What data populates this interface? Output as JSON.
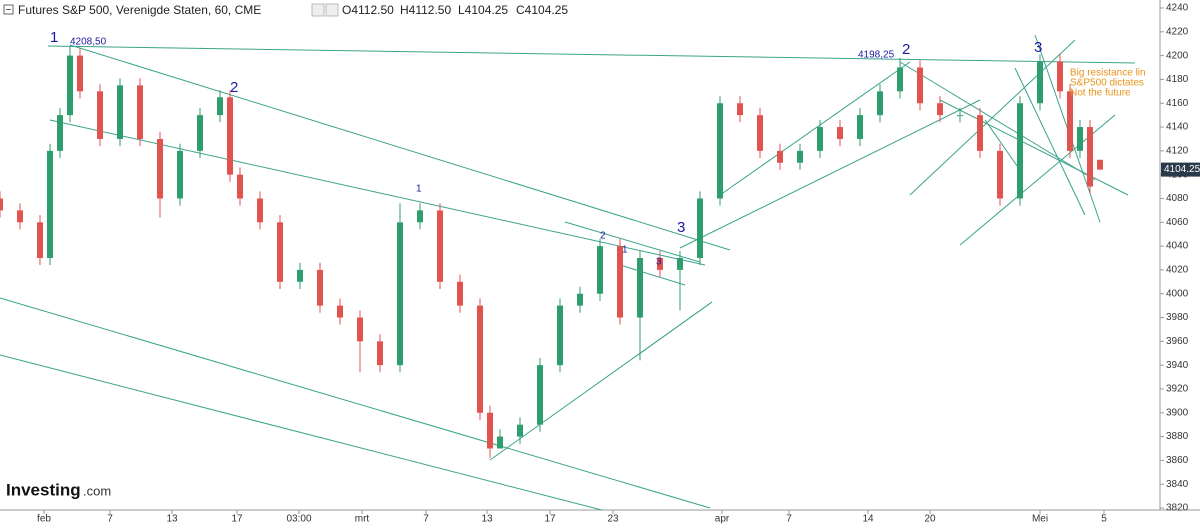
{
  "header": {
    "title": "Futures S&P 500, Verenigde Staten, 60, CME",
    "open": "O4112.50",
    "high": "H4112.50",
    "low": "L4104.25",
    "close": "C4104.25"
  },
  "logo": {
    "brand": "Investing",
    "suffix": ".com"
  },
  "chart_data": {
    "type": "candlestick",
    "up_color": "#2e9e6e",
    "down_color": "#e0534f",
    "xlim": [
      0,
      116
    ],
    "ylim": [
      3820,
      4240
    ],
    "yticks": [
      3820,
      3840,
      3860,
      3880,
      3900,
      3920,
      3940,
      3960,
      3980,
      4000,
      4020,
      4040,
      4060,
      4080,
      4100,
      4120,
      4140,
      4160,
      4180,
      4200,
      4220,
      4240
    ],
    "xticks": [
      {
        "value": 4.4,
        "label": "feb"
      },
      {
        "value": 11,
        "label": "7"
      },
      {
        "value": 17.2,
        "label": "13"
      },
      {
        "value": 23.7,
        "label": "17"
      },
      {
        "value": 29.9,
        "label": "03:00"
      },
      {
        "value": 36.2,
        "label": "mrt"
      },
      {
        "value": 42.6,
        "label": "7"
      },
      {
        "value": 48.7,
        "label": "13"
      },
      {
        "value": 55,
        "label": "17"
      },
      {
        "value": 61.3,
        "label": "23"
      },
      {
        "value": 72.2,
        "label": "apr"
      },
      {
        "value": 78.9,
        "label": "7"
      },
      {
        "value": 86.8,
        "label": "14"
      },
      {
        "value": 93,
        "label": "20"
      },
      {
        "value": 104,
        "label": "Mei"
      },
      {
        "value": 110.4,
        "label": "5"
      }
    ],
    "last_price": 4104.25,
    "x": [
      0,
      2,
      4,
      5,
      6,
      7,
      8,
      10,
      12,
      14,
      16,
      18,
      20,
      22,
      23,
      24,
      26,
      28,
      30,
      32,
      34,
      36,
      38,
      40,
      42,
      44,
      46,
      48,
      49,
      50,
      52,
      54,
      56,
      58,
      60,
      62,
      64,
      66,
      68,
      70,
      72,
      74,
      76,
      78,
      80,
      82,
      84,
      86,
      88,
      90,
      92,
      94,
      96,
      98,
      100,
      102,
      104,
      106,
      107,
      108,
      109,
      110
    ],
    "open": [
      4080,
      4070,
      4060,
      4030,
      4120,
      4150,
      4200,
      4170,
      4130,
      4175,
      4130,
      4080,
      4120,
      4150,
      4165,
      4100,
      4080,
      4060,
      4010,
      4020,
      3990,
      3980,
      3960,
      3940,
      4060,
      4070,
      4010,
      3990,
      3900,
      3870,
      3880,
      3890,
      3940,
      3990,
      4000,
      4040,
      3980,
      4030,
      4020,
      4030,
      4080,
      4160,
      4150,
      4120,
      4110,
      4120,
      4140,
      4130,
      4150,
      4170,
      4190,
      4160,
      4150,
      4150,
      4120,
      4080,
      4160,
      4195,
      4170,
      4120,
      4140,
      4112.5
    ],
    "high": [
      4086,
      4076,
      4066,
      4126,
      4156,
      4208.5,
      4206,
      4176,
      4181,
      4181,
      4136,
      4126,
      4156,
      4171,
      4171,
      4106,
      4086,
      4066,
      4026,
      4026,
      3996,
      3986,
      3966,
      4076,
      4076,
      4076,
      4016,
      3996,
      3906,
      3886,
      3896,
      3946,
      3996,
      4006,
      4046,
      4046,
      4036,
      4036,
      4036,
      4086,
      4166,
      4166,
      4156,
      4126,
      4126,
      4146,
      4146,
      4156,
      4176,
      4198.25,
      4196,
      4166,
      4156,
      4156,
      4126,
      4166,
      4201,
      4201,
      4176,
      4146,
      4146,
      4112.5
    ],
    "low": [
      4064,
      4054,
      4024,
      4024,
      4114,
      4144,
      4164,
      4124,
      4124,
      4124,
      4064,
      4074,
      4114,
      4144,
      4094,
      4074,
      4054,
      4004,
      4004,
      3984,
      3974,
      3934,
      3934,
      3934,
      4054,
      4004,
      3984,
      3894,
      3862,
      3874,
      3874,
      3884,
      3934,
      3984,
      3994,
      3974,
      3944,
      4014,
      3986,
      4024,
      4074,
      4144,
      4114,
      4104,
      4104,
      4114,
      4124,
      4124,
      4144,
      4164,
      4154,
      4144,
      4144,
      4114,
      4074,
      4074,
      4154,
      4164,
      4114,
      4114,
      4084,
      4104.25
    ],
    "close": [
      4070,
      4060,
      4030,
      4120,
      4150,
      4200,
      4170,
      4130,
      4175,
      4130,
      4080,
      4120,
      4150,
      4165,
      4100,
      4080,
      4060,
      4010,
      4020,
      3990,
      3980,
      3960,
      3940,
      4060,
      4070,
      4010,
      3990,
      3900,
      3870,
      3880,
      3890,
      3940,
      3990,
      4000,
      4040,
      3980,
      4030,
      4020,
      4030,
      4080,
      4160,
      4150,
      4120,
      4110,
      4120,
      4140,
      4130,
      4150,
      4170,
      4190,
      4160,
      4150,
      4150,
      4120,
      4080,
      4160,
      4195,
      4170,
      4120,
      4140,
      4090,
      4104.25
    ],
    "annotations": [
      "1",
      "4208,50",
      "2",
      "1",
      "2",
      "1",
      "3",
      "3",
      "4198,25",
      "2",
      "3",
      "Big resistance lin",
      "S&P500 dictates",
      "Not the future"
    ]
  }
}
